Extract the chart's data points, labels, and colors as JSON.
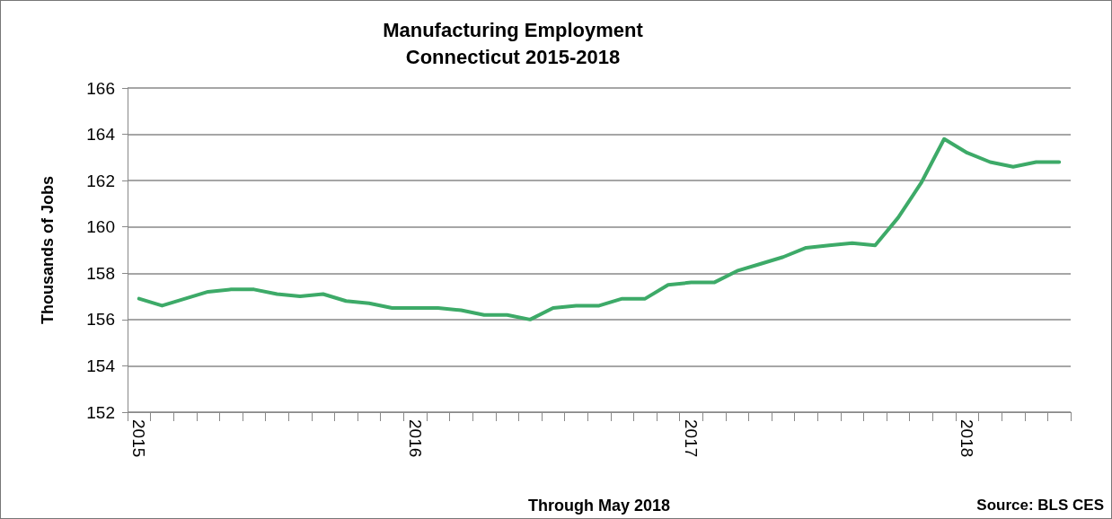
{
  "chart_data": {
    "type": "line",
    "title": "Manufacturing Employment\nConnecticut 2015-2018",
    "xlabel": "Through May 2018",
    "ylabel": "Thousands of Jobs",
    "annotations": [
      "Source: BLS CES"
    ],
    "categories": [
      "2015",
      null,
      null,
      null,
      null,
      null,
      null,
      null,
      null,
      null,
      null,
      null,
      "2016",
      null,
      null,
      null,
      null,
      null,
      null,
      null,
      null,
      null,
      null,
      null,
      "2017",
      null,
      null,
      null,
      null,
      null,
      null,
      null,
      null,
      null,
      null,
      null,
      "2018",
      null,
      null,
      null,
      null
    ],
    "series": [
      {
        "color": "#3daa68",
        "values": [
          156.9,
          156.6,
          156.9,
          157.2,
          157.3,
          157.3,
          157.1,
          157.0,
          157.1,
          156.8,
          156.7,
          156.5,
          156.5,
          156.5,
          156.4,
          156.2,
          156.2,
          156.0,
          156.5,
          156.6,
          156.6,
          156.9,
          156.9,
          157.5,
          157.6,
          157.6,
          158.1,
          158.4,
          158.7,
          159.1,
          159.2,
          159.3,
          159.2,
          160.4,
          161.9,
          163.8,
          163.2,
          162.8,
          162.6,
          162.8,
          162.8
        ]
      }
    ],
    "ylim": [
      152,
      166
    ],
    "yticks": [
      152,
      154,
      156,
      158,
      160,
      162,
      164,
      166
    ],
    "grid": "y",
    "marker": "none",
    "line_style": "solid"
  }
}
